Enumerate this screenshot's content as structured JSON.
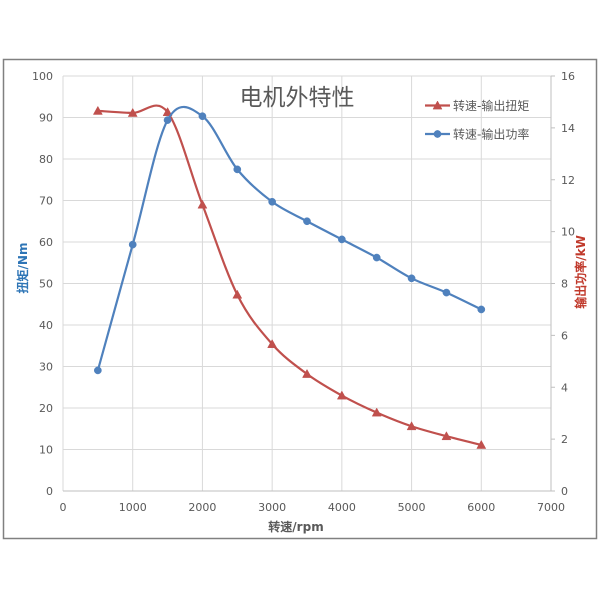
{
  "chart_data": {
    "type": "line",
    "title": "电机外特性",
    "xlabel": "转速/rpm",
    "ylabel": "扭矩/Nm",
    "y2label": "输出功率/kW",
    "x": [
      500,
      1000,
      1500,
      2000,
      2500,
      3000,
      3500,
      4000,
      4500,
      5000,
      5500,
      6000
    ],
    "xlim": [
      0,
      7000
    ],
    "xticks": [
      0,
      1000,
      2000,
      3000,
      4000,
      5000,
      6000,
      7000
    ],
    "ylim": [
      0,
      100
    ],
    "yticks": [
      0,
      10,
      20,
      30,
      40,
      50,
      60,
      70,
      80,
      90,
      100
    ],
    "y2lim": [
      0,
      16
    ],
    "y2ticks": [
      0,
      2,
      4,
      6,
      8,
      10,
      12,
      14,
      16
    ],
    "grid": true,
    "smooth": true,
    "legend_position": "top-right",
    "series": [
      {
        "name": "转速-输出扭矩",
        "axis": "left",
        "marker": "triangle",
        "color": "#C0504D",
        "values": [
          91.6,
          91.1,
          91.3,
          69.0,
          47.3,
          35.4,
          28.2,
          23.0,
          18.9,
          15.6,
          13.2,
          11.1
        ]
      },
      {
        "name": "转速-输出功率",
        "axis": "right",
        "marker": "circle",
        "color": "#4F81BD",
        "values": [
          4.65,
          9.5,
          14.3,
          14.45,
          12.4,
          11.15,
          10.4,
          9.7,
          9.0,
          8.2,
          7.65,
          7.0
        ]
      }
    ]
  },
  "colors": {
    "ylabel": "#2E75B6",
    "y2label": "#C0392B",
    "frame": "#808080",
    "grid": "#D9D9D9",
    "text": "#595959"
  }
}
